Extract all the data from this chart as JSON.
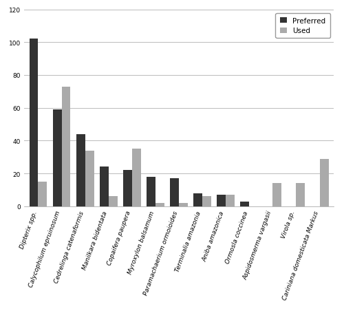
{
  "categories": [
    "Dipterix spp.",
    "Calycophilum epruinosum",
    "Cedrelinga catenaformis",
    "Manilkara bidentata",
    "Copaifera paupera",
    "Myroxylon balsamum",
    "Paramachaerium ormoioides",
    "Terminalia amazonia",
    "Aniba amazonica",
    "Ormosla coccinea",
    "Aspidosmerma vargasii",
    "Virola sp.",
    "Cariniana domesticata Markus"
  ],
  "preferred": [
    102,
    59,
    44,
    24,
    22,
    18,
    17,
    8,
    7,
    3,
    0,
    0,
    0
  ],
  "used": [
    15,
    73,
    34,
    6,
    35,
    2,
    2,
    6,
    7,
    0,
    14,
    14,
    29
  ],
  "preferred_color": "#333333",
  "used_color": "#aaaaaa",
  "bar_width": 0.38,
  "ylim": [
    0,
    120
  ],
  "yticks": [
    0,
    20,
    40,
    60,
    80,
    100,
    120
  ],
  "legend_labels": [
    "Preferred",
    "Used"
  ],
  "grid_color": "#bbbbbb",
  "background_color": "#ffffff",
  "tick_fontsize": 6.5,
  "legend_fontsize": 7.5
}
